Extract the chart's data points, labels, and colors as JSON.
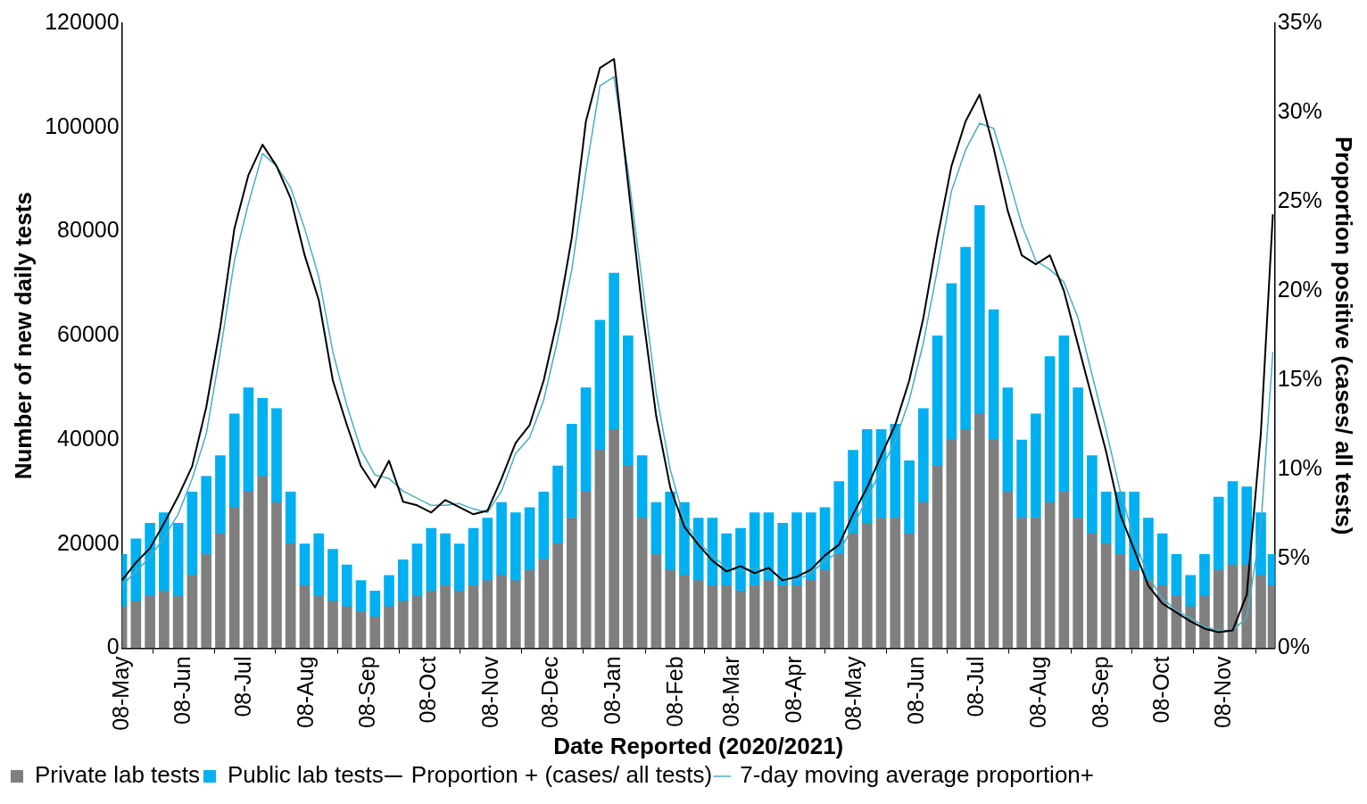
{
  "chart_data": {
    "type": "bar",
    "stacked": true,
    "xlabel": "Date Reported (2020/2021)",
    "ylabel": "Number of new daily tests",
    "y2label": "Proportion positive (cases/ all tests)",
    "x": [
      "2020-05-08",
      "2020-05-15",
      "2020-05-22",
      "2020-05-29",
      "2020-06-05",
      "2020-06-12",
      "2020-06-19",
      "2020-06-26",
      "2020-07-03",
      "2020-07-10",
      "2020-07-17",
      "2020-07-24",
      "2020-07-31",
      "2020-08-07",
      "2020-08-14",
      "2020-08-21",
      "2020-08-28",
      "2020-09-04",
      "2020-09-11",
      "2020-09-18",
      "2020-09-25",
      "2020-10-02",
      "2020-10-09",
      "2020-10-16",
      "2020-10-23",
      "2020-10-30",
      "2020-11-06",
      "2020-11-13",
      "2020-11-20",
      "2020-11-27",
      "2020-12-04",
      "2020-12-11",
      "2020-12-18",
      "2020-12-25",
      "2021-01-01",
      "2021-01-08",
      "2021-01-15",
      "2021-01-22",
      "2021-01-29",
      "2021-02-05",
      "2021-02-12",
      "2021-02-19",
      "2021-02-26",
      "2021-03-05",
      "2021-03-12",
      "2021-03-19",
      "2021-03-26",
      "2021-04-02",
      "2021-04-09",
      "2021-04-16",
      "2021-04-23",
      "2021-04-30",
      "2021-05-07",
      "2021-05-14",
      "2021-05-21",
      "2021-05-28",
      "2021-06-04",
      "2021-06-11",
      "2021-06-18",
      "2021-06-25",
      "2021-07-02",
      "2021-07-09",
      "2021-07-16",
      "2021-07-23",
      "2021-07-30",
      "2021-08-06",
      "2021-08-13",
      "2021-08-20",
      "2021-08-27",
      "2021-09-03",
      "2021-09-10",
      "2021-09-17",
      "2021-09-24",
      "2021-10-01",
      "2021-10-08",
      "2021-10-15",
      "2021-10-22",
      "2021-10-29",
      "2021-11-05",
      "2021-11-12",
      "2021-11-19",
      "2021-11-26",
      "2021-12-02"
    ],
    "series": [
      {
        "name": "Private lab tests",
        "color": "#7f7f7f",
        "values": [
          8000,
          9000,
          10000,
          11000,
          10000,
          14000,
          18000,
          22000,
          27000,
          30000,
          33000,
          28000,
          20000,
          12000,
          10000,
          9000,
          8000,
          7000,
          6000,
          8000,
          9000,
          10000,
          11000,
          12000,
          11000,
          12000,
          13000,
          14000,
          13000,
          15000,
          17000,
          20000,
          25000,
          30000,
          38000,
          42000,
          35000,
          25000,
          18000,
          15000,
          14000,
          13000,
          12000,
          12000,
          11000,
          12000,
          13000,
          12000,
          12000,
          13000,
          15000,
          18000,
          22000,
          24000,
          25000,
          25000,
          22000,
          28000,
          35000,
          40000,
          42000,
          45000,
          40000,
          30000,
          25000,
          25000,
          28000,
          30000,
          25000,
          22000,
          20000,
          18000,
          15000,
          13000,
          12000,
          10000,
          8000,
          10000,
          15000,
          16000,
          16000,
          14000,
          12000
        ]
      },
      {
        "name": "Public lab tests",
        "color": "#00b0f0",
        "values": [
          10000,
          12000,
          14000,
          15000,
          14000,
          16000,
          15000,
          15000,
          18000,
          20000,
          15000,
          18000,
          10000,
          8000,
          12000,
          10000,
          8000,
          6000,
          5000,
          6000,
          8000,
          10000,
          12000,
          10000,
          9000,
          11000,
          12000,
          14000,
          13000,
          12000,
          13000,
          15000,
          18000,
          20000,
          25000,
          30000,
          25000,
          12000,
          10000,
          15000,
          14000,
          12000,
          13000,
          10000,
          12000,
          14000,
          13000,
          12000,
          14000,
          13000,
          12000,
          14000,
          16000,
          18000,
          17000,
          18000,
          14000,
          18000,
          25000,
          30000,
          35000,
          40000,
          25000,
          20000,
          15000,
          20000,
          28000,
          30000,
          25000,
          15000,
          10000,
          12000,
          15000,
          12000,
          10000,
          8000,
          6000,
          8000,
          14000,
          16000,
          15000,
          12000,
          6000
        ]
      },
      {
        "name": "Proportion + (cases/ all tests)",
        "type": "line",
        "axis": "y2",
        "color": "#000000",
        "values": [
          3.8,
          4.8,
          5.6,
          7.0,
          8.5,
          10.2,
          13.5,
          18.0,
          23.5,
          26.5,
          28.2,
          27.0,
          25.2,
          22.0,
          19.5,
          15.0,
          12.5,
          10.2,
          9.0,
          10.5,
          8.2,
          8.0,
          7.6,
          8.3,
          7.9,
          7.5,
          7.7,
          9.5,
          11.5,
          12.5,
          15.0,
          18.5,
          23.0,
          29.5,
          32.5,
          33.0,
          26.0,
          19.0,
          13.0,
          9.0,
          6.8,
          5.8,
          4.9,
          4.3,
          4.6,
          4.2,
          4.5,
          3.8,
          4.0,
          4.4,
          5.2,
          5.8,
          7.5,
          9.0,
          10.8,
          12.5,
          15.0,
          18.5,
          23.0,
          27.0,
          29.5,
          31.0,
          28.0,
          24.5,
          22.0,
          21.5,
          22.0,
          20.0,
          17.0,
          14.0,
          11.0,
          7.5,
          5.5,
          3.5,
          2.5,
          2.0,
          1.5,
          1.1,
          0.9,
          1.0,
          3.0,
          12.0,
          24.3
        ]
      },
      {
        "name": "7-day moving average proportion+",
        "type": "line",
        "axis": "y2",
        "color": "#4bacc6",
        "values": [
          3.5,
          4.3,
          5.1,
          6.2,
          7.5,
          9.5,
          12.0,
          16.6,
          21.7,
          24.9,
          27.7,
          27.0,
          25.8,
          23.5,
          20.8,
          16.6,
          13.6,
          11.1,
          9.7,
          9.5,
          8.8,
          8.4,
          8.0,
          8.0,
          8.1,
          7.8,
          7.6,
          8.8,
          10.9,
          11.8,
          13.9,
          17.3,
          21.2,
          26.7,
          31.5,
          32.0,
          26.7,
          20.5,
          14.3,
          10.0,
          7.2,
          5.9,
          5.2,
          4.5,
          4.3,
          4.5,
          4.3,
          4.0,
          3.8,
          4.2,
          4.9,
          5.4,
          6.8,
          8.4,
          10.0,
          11.6,
          13.9,
          17.1,
          21.2,
          25.6,
          27.9,
          29.4,
          29.1,
          26.5,
          23.7,
          21.7,
          21.2,
          20.5,
          18.5,
          15.3,
          12.2,
          8.8,
          6.1,
          4.0,
          2.8,
          2.1,
          1.7,
          1.2,
          1.0,
          1.0,
          1.7,
          6.8,
          16.6
        ]
      }
    ],
    "xlim": [
      "2020-05-08",
      "2021-12-03"
    ],
    "xticks": [
      {
        "value": "2020-05-08",
        "label": "08-May"
      },
      {
        "value": "2020-06-08",
        "label": "08-Jun"
      },
      {
        "value": "2020-07-08",
        "label": "08-Jul"
      },
      {
        "value": "2020-08-08",
        "label": "08-Aug"
      },
      {
        "value": "2020-09-08",
        "label": "08-Sep"
      },
      {
        "value": "2020-10-08",
        "label": "08-Oct"
      },
      {
        "value": "2020-11-08",
        "label": "08-Nov"
      },
      {
        "value": "2020-12-08",
        "label": "08-Dec"
      },
      {
        "value": "2021-01-08",
        "label": "08-Jan"
      },
      {
        "value": "2021-02-08",
        "label": "08-Feb"
      },
      {
        "value": "2021-03-08",
        "label": "08-Mar"
      },
      {
        "value": "2021-04-08",
        "label": "08-Apr"
      },
      {
        "value": "2021-05-08",
        "label": "08-May"
      },
      {
        "value": "2021-06-08",
        "label": "08-Jun"
      },
      {
        "value": "2021-07-08",
        "label": "08-Jul"
      },
      {
        "value": "2021-08-08",
        "label": "08-Aug"
      },
      {
        "value": "2021-09-08",
        "label": "08-Sep"
      },
      {
        "value": "2021-10-08",
        "label": "08-Oct"
      },
      {
        "value": "2021-11-08",
        "label": "08-Nov"
      }
    ],
    "ylim": [
      0,
      120000
    ],
    "yticks": [
      0,
      20000,
      40000,
      60000,
      80000,
      100000,
      120000
    ],
    "y2lim": [
      0,
      35
    ],
    "y2ticks": [
      {
        "value": 0,
        "label": "0%"
      },
      {
        "value": 5,
        "label": "5%"
      },
      {
        "value": 10,
        "label": "10%"
      },
      {
        "value": 15,
        "label": "15%"
      },
      {
        "value": 20,
        "label": "20%"
      },
      {
        "value": 25,
        "label": "25%"
      },
      {
        "value": 30,
        "label": "30%"
      },
      {
        "value": 35,
        "label": "35%"
      }
    ],
    "grid": false,
    "legend": "bottom"
  }
}
